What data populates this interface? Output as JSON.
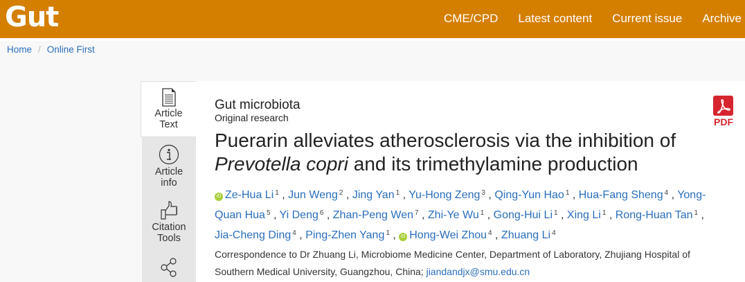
{
  "header": {
    "logo": "Gut",
    "nav": [
      "CME/CPD",
      "Latest content",
      "Current issue",
      "Archive"
    ],
    "brand_color": "#d47f00"
  },
  "breadcrumb": {
    "items": [
      "Home",
      "Online First"
    ],
    "separator": "/"
  },
  "sidebar": {
    "tabs": [
      {
        "label1": "Article",
        "label2": "Text",
        "icon": "document-icon"
      },
      {
        "label1": "Article",
        "label2": "info",
        "icon": "info-icon"
      },
      {
        "label1": "Citation",
        "label2": "Tools",
        "icon": "thumbs-up-icon"
      },
      {
        "icon": "share-icon"
      }
    ]
  },
  "article": {
    "section": "Gut microbiota",
    "type": "Original research",
    "title_1": "Puerarin alleviates atherosclerosis via the inhibition of",
    "title_italic": "Prevotella copri",
    "title_2": " and its trimethylamine production",
    "authors": [
      {
        "name": "Ze-Hua Li",
        "aff": "1",
        "orcid": true
      },
      {
        "name": "Jun Weng",
        "aff": "2"
      },
      {
        "name": "Jing Yan",
        "aff": "1"
      },
      {
        "name": "Yu-Hong Zeng",
        "aff": "3"
      },
      {
        "name": "Qing-Yun Hao",
        "aff": "1"
      },
      {
        "name": "Hua-Fang Sheng",
        "aff": "4"
      },
      {
        "name": "Yong-Quan Hua",
        "aff": "5"
      },
      {
        "name": "Yi Deng",
        "aff": "6"
      },
      {
        "name": "Zhan-Peng Wen",
        "aff": "7"
      },
      {
        "name": "Zhi-Ye Wu",
        "aff": "1"
      },
      {
        "name": "Gong-Hui Li",
        "aff": "1"
      },
      {
        "name": "Xing Li",
        "aff": "1"
      },
      {
        "name": "Rong-Huan Tan",
        "aff": "1"
      },
      {
        "name": "Jia-Cheng Ding",
        "aff": "4"
      },
      {
        "name": "Ping-Zhen Yang",
        "aff": "1"
      },
      {
        "name": "Hong-Wei Zhou",
        "aff": "4",
        "orcid": true
      },
      {
        "name": "Zhuang Li",
        "aff": "4"
      }
    ],
    "correspondence": "Correspondence to Dr Zhuang Li, Microbiome Medicine Center, Department of Laboratory, Zhujiang Hospital of Southern Medical University, Guangzhou, China; ",
    "email": "jiandandjx@smu.edu.cn",
    "pdf_label": "PDF"
  }
}
